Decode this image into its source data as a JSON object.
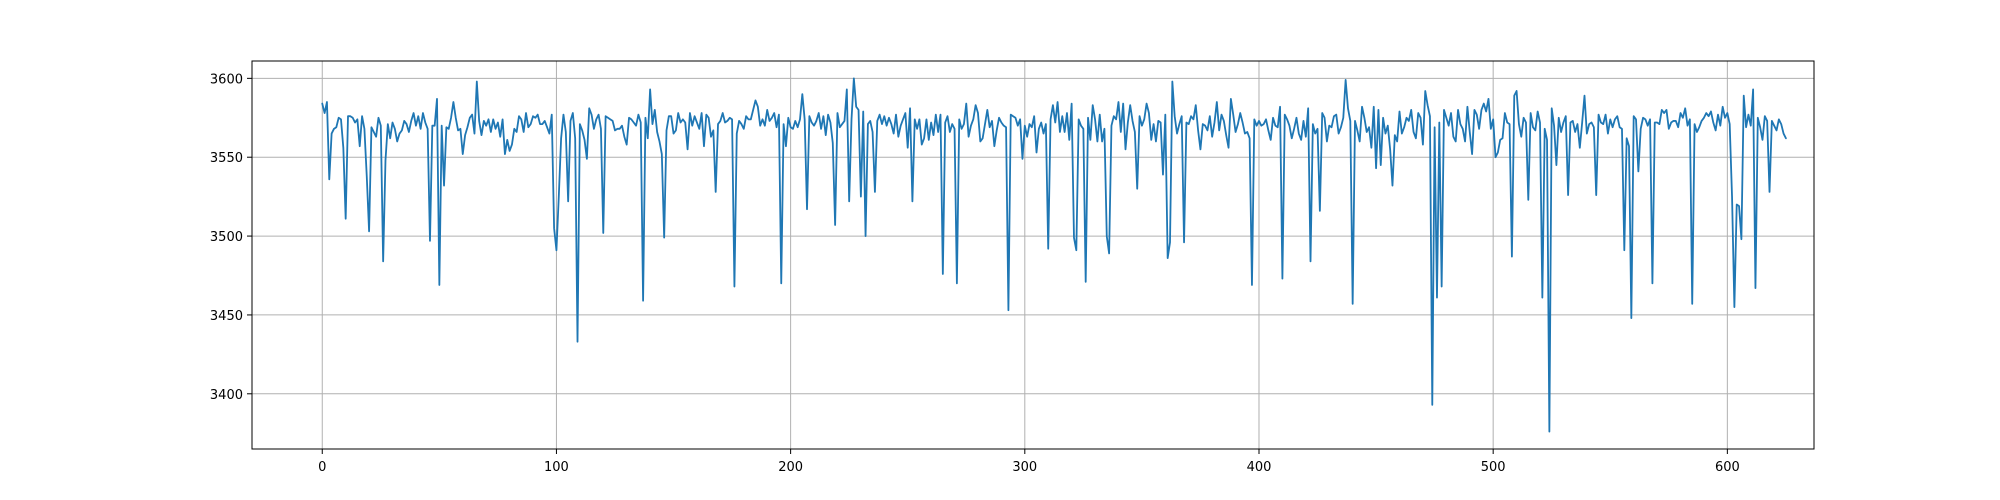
{
  "chart_data": {
    "type": "line",
    "title": "",
    "xlabel": "",
    "ylabel": "",
    "xlim": [
      -30,
      637
    ],
    "ylim": [
      3365,
      3611
    ],
    "grid": true,
    "x_ticks": [
      0,
      100,
      200,
      300,
      400,
      500,
      600
    ],
    "y_ticks": [
      3400,
      3450,
      3500,
      3550,
      3600
    ],
    "x_tick_labels": [
      "0",
      "100",
      "200",
      "300",
      "400",
      "500",
      "600"
    ],
    "y_tick_labels": [
      "3400",
      "3450",
      "3500",
      "3550",
      "3600"
    ],
    "line_color": "#1f77b4",
    "series": [
      {
        "values": [
          3584,
          3578,
          3585,
          3536,
          3565,
          3568,
          3569,
          3575,
          3574,
          3556,
          3511,
          3576,
          3576,
          3575,
          3572,
          3574,
          3557,
          3576,
          3568,
          3538,
          3503,
          3569,
          3566,
          3563,
          3575,
          3570,
          3484,
          3548,
          3571,
          3562,
          3572,
          3568,
          3560,
          3565,
          3567,
          3573,
          3571,
          3566,
          3573,
          3578,
          3570,
          3576,
          3568,
          3578,
          3572,
          3568,
          3497,
          3570,
          3570,
          3587,
          3469,
          3570,
          3532,
          3569,
          3568,
          3575,
          3585,
          3575,
          3567,
          3568,
          3552,
          3564,
          3569,
          3575,
          3577,
          3565,
          3598,
          3573,
          3564,
          3573,
          3570,
          3574,
          3566,
          3574,
          3568,
          3572,
          3563,
          3574,
          3552,
          3561,
          3554,
          3558,
          3568,
          3566,
          3576,
          3574,
          3566,
          3578,
          3569,
          3571,
          3576,
          3575,
          3577,
          3571,
          3571,
          3573,
          3569,
          3565,
          3577,
          3505,
          3491,
          3525,
          3562,
          3577,
          3566,
          3522,
          3573,
          3578,
          3562,
          3433,
          3571,
          3567,
          3561,
          3549,
          3581,
          3577,
          3568,
          3574,
          3577,
          3568,
          3502,
          3576,
          3575,
          3574,
          3573,
          3567,
          3568,
          3568,
          3570,
          3563,
          3558,
          3575,
          3574,
          3572,
          3570,
          3577,
          3572,
          3459,
          3575,
          3562,
          3593,
          3571,
          3580,
          3566,
          3560,
          3552,
          3499,
          3567,
          3576,
          3576,
          3565,
          3567,
          3578,
          3572,
          3574,
          3572,
          3555,
          3578,
          3570,
          3576,
          3572,
          3568,
          3578,
          3557,
          3577,
          3575,
          3563,
          3567,
          3528,
          3571,
          3573,
          3578,
          3572,
          3573,
          3575,
          3574,
          3468,
          3565,
          3573,
          3571,
          3568,
          3576,
          3574,
          3574,
          3580,
          3586,
          3582,
          3570,
          3574,
          3570,
          3580,
          3573,
          3575,
          3578,
          3569,
          3577,
          3470,
          3571,
          3557,
          3575,
          3569,
          3568,
          3573,
          3569,
          3574,
          3590,
          3574,
          3517,
          3576,
          3572,
          3570,
          3573,
          3578,
          3568,
          3576,
          3564,
          3577,
          3572,
          3559,
          3507,
          3578,
          3569,
          3571,
          3573,
          3593,
          3522,
          3574,
          3600,
          3582,
          3580,
          3525,
          3579,
          3500,
          3571,
          3573,
          3566,
          3528,
          3573,
          3577,
          3571,
          3576,
          3570,
          3575,
          3571,
          3565,
          3577,
          3563,
          3570,
          3574,
          3578,
          3556,
          3581,
          3522,
          3574,
          3568,
          3574,
          3558,
          3562,
          3574,
          3561,
          3572,
          3564,
          3577,
          3566,
          3577,
          3476,
          3572,
          3576,
          3566,
          3571,
          3568,
          3470,
          3574,
          3568,
          3571,
          3584,
          3563,
          3570,
          3574,
          3583,
          3578,
          3560,
          3562,
          3571,
          3580,
          3569,
          3573,
          3557,
          3567,
          3575,
          3572,
          3570,
          3569,
          3453,
          3577,
          3576,
          3575,
          3570,
          3574,
          3549,
          3570,
          3563,
          3571,
          3569,
          3576,
          3553,
          3568,
          3572,
          3565,
          3571,
          3492,
          3574,
          3583,
          3572,
          3585,
          3566,
          3576,
          3566,
          3578,
          3561,
          3584,
          3499,
          3491,
          3574,
          3570,
          3568,
          3471,
          3575,
          3561,
          3583,
          3574,
          3560,
          3577,
          3560,
          3568,
          3500,
          3489,
          3570,
          3576,
          3574,
          3585,
          3566,
          3584,
          3555,
          3572,
          3583,
          3573,
          3566,
          3530,
          3576,
          3570,
          3574,
          3584,
          3578,
          3561,
          3571,
          3560,
          3573,
          3572,
          3539,
          3577,
          3486,
          3496,
          3598,
          3576,
          3565,
          3571,
          3576,
          3496,
          3572,
          3571,
          3576,
          3574,
          3583,
          3567,
          3555,
          3571,
          3570,
          3567,
          3576,
          3563,
          3572,
          3585,
          3567,
          3577,
          3573,
          3564,
          3556,
          3587,
          3577,
          3566,
          3571,
          3578,
          3572,
          3565,
          3566,
          3562,
          3469,
          3574,
          3570,
          3573,
          3570,
          3571,
          3574,
          3567,
          3561,
          3575,
          3570,
          3569,
          3582,
          3473,
          3577,
          3574,
          3570,
          3562,
          3568,
          3575,
          3565,
          3561,
          3573,
          3563,
          3581,
          3484,
          3571,
          3565,
          3568,
          3516,
          3578,
          3575,
          3560,
          3570,
          3569,
          3576,
          3577,
          3565,
          3569,
          3575,
          3599,
          3581,
          3573,
          3457,
          3573,
          3567,
          3560,
          3582,
          3575,
          3566,
          3569,
          3556,
          3582,
          3543,
          3580,
          3545,
          3575,
          3565,
          3570,
          3555,
          3532,
          3564,
          3560,
          3579,
          3565,
          3569,
          3575,
          3573,
          3580,
          3566,
          3562,
          3578,
          3575,
          3558,
          3592,
          3583,
          3576,
          3393,
          3569,
          3461,
          3572,
          3468,
          3580,
          3575,
          3570,
          3578,
          3563,
          3560,
          3580,
          3571,
          3568,
          3560,
          3582,
          3566,
          3552,
          3580,
          3577,
          3568,
          3580,
          3584,
          3579,
          3587,
          3568,
          3574,
          3550,
          3553,
          3561,
          3562,
          3578,
          3572,
          3571,
          3487,
          3589,
          3592,
          3571,
          3563,
          3575,
          3572,
          3523,
          3578,
          3569,
          3567,
          3579,
          3572,
          3461,
          3568,
          3561,
          3376,
          3581,
          3570,
          3545,
          3575,
          3566,
          3572,
          3576,
          3526,
          3572,
          3573,
          3566,
          3571,
          3556,
          3572,
          3589,
          3565,
          3571,
          3572,
          3569,
          3526,
          3577,
          3572,
          3571,
          3577,
          3565,
          3574,
          3569,
          3574,
          3576,
          3569,
          3568,
          3491,
          3562,
          3557,
          3448,
          3576,
          3574,
          3541,
          3568,
          3575,
          3574,
          3570,
          3574,
          3470,
          3572,
          3572,
          3571,
          3580,
          3578,
          3580,
          3568,
          3572,
          3573,
          3573,
          3569,
          3578,
          3575,
          3581,
          3570,
          3574,
          3457,
          3571,
          3566,
          3569,
          3573,
          3575,
          3578,
          3576,
          3579,
          3572,
          3567,
          3577,
          3570,
          3582,
          3575,
          3578,
          3571,
          3525,
          3455,
          3520,
          3519,
          3498,
          3589,
          3569,
          3577,
          3570,
          3593,
          3467,
          3575,
          3569,
          3561,
          3576,
          3573,
          3528,
          3573,
          3570,
          3567,
          3574,
          3571,
          3565,
          3562
        ]
      }
    ]
  }
}
